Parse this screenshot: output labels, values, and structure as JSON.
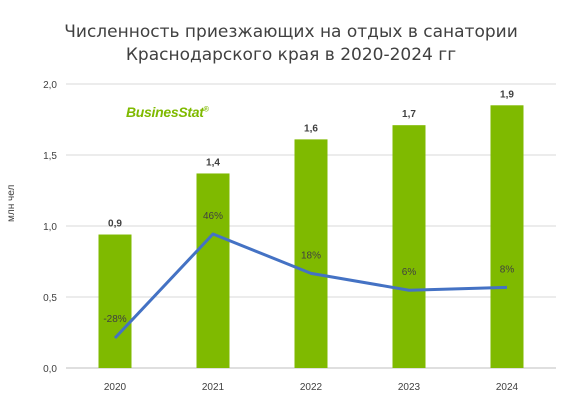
{
  "title_line1": "Численность приезжающих на отдых в санатории",
  "title_line2": "Краснодарского края в 2020-2024 гг",
  "logo": {
    "text": "BusinesStat",
    "mark": "®"
  },
  "colors": {
    "bar": "#7fba00",
    "line": "#4472c4",
    "grid": "#d9d9d9",
    "axis": "#bfbfbf",
    "text": "#404040"
  },
  "chart_data": {
    "type": "bar",
    "categories": [
      "2020",
      "2021",
      "2022",
      "2023",
      "2024"
    ],
    "series": [
      {
        "values": [
          0.94,
          1.37,
          1.61,
          1.71,
          1.85
        ],
        "labels": [
          "0,9",
          "1,4",
          "1,6",
          "1,7",
          "1,9"
        ]
      },
      {
        "type": "line",
        "values": [
          -28,
          46,
          18,
          6,
          8
        ],
        "labels": [
          "-28%",
          "46%",
          "18%",
          "6%",
          "8%"
        ]
      }
    ],
    "ylabel": "млн чел",
    "ylim": [
      0,
      2.0
    ],
    "yticks": [
      "0,0",
      "0,5",
      "1,0",
      "1,5",
      "2,0"
    ],
    "grid": true
  }
}
